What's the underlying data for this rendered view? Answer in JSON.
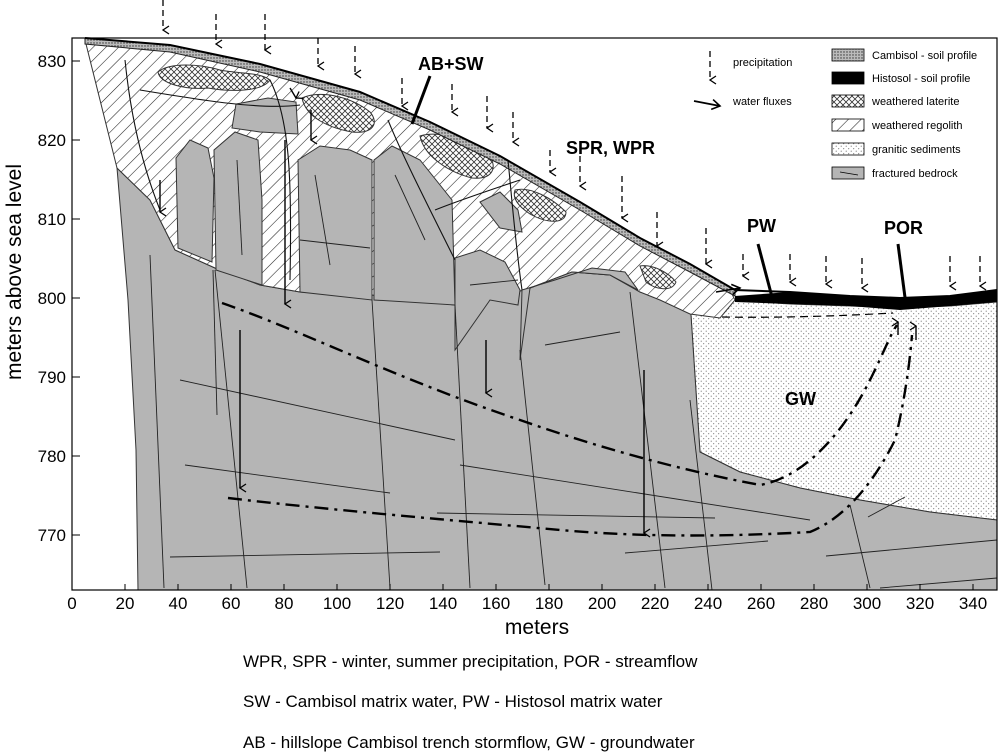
{
  "axes": {
    "xlabel": "meters",
    "ylabel": "meters above sea level",
    "xticks": [
      "0",
      "20",
      "40",
      "60",
      "80",
      "100",
      "120",
      "140",
      "160",
      "180",
      "200",
      "220",
      "240",
      "260",
      "280",
      "300",
      "320",
      "340"
    ],
    "yticks": [
      "830",
      "820",
      "810",
      "800",
      "790",
      "780",
      "770"
    ]
  },
  "legend": {
    "precipitation": "precipitation",
    "water_fluxes": "water fluxes",
    "cambisol": "Cambisol - soil profile",
    "histosol": "Histosol - soil profile",
    "laterite": "weathered laterite",
    "regolith": "weathered regolith",
    "granitic": "granitic sediments",
    "bedrock": "fractured bedrock"
  },
  "labels": {
    "ab_sw": "AB+SW",
    "spr_wpr": "SPR, WPR",
    "pw": "PW",
    "por": "POR",
    "gw": "GW"
  },
  "captions": {
    "line1": "WPR, SPR - winter, summer precipitation, POR - streamflow",
    "line2": "SW - Cambisol matrix water, PW - Histosol matrix water",
    "line3": "AB - hillslope Cambisol trench stormflow,  GW - groundwater"
  }
}
